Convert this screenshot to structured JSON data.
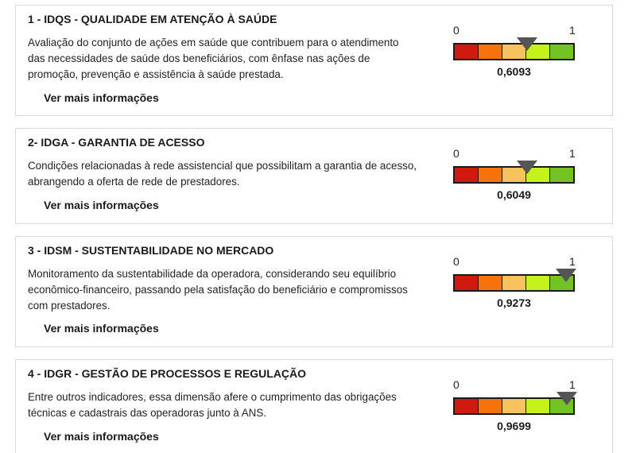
{
  "indicators": [
    {
      "title": "1 - IDQS - QUALIDADE EM ATENÇÃO À SAÚDE",
      "description": "Avaliação do conjunto de ações em saúde que contribuem para o atendimento das necessidades de saúde dos beneficiários, com ênfase nas ações de promoção, prevenção e assistência à saúde prestada.",
      "more_label": "Ver mais informações",
      "scale_min": "0",
      "scale_max": "1",
      "value_text": "0,6093",
      "value": 0.6093
    },
    {
      "title": "2- IDGA - GARANTIA DE ACESSO",
      "description": "Condições relacionadas à rede assistencial que possibilitam a garantia de acesso, abrangendo a oferta de rede de prestadores.",
      "more_label": "Ver mais informações",
      "scale_min": "0",
      "scale_max": "1",
      "value_text": "0,6049",
      "value": 0.6049
    },
    {
      "title": "3 - IDSM - SUSTENTABILIDADE NO MERCADO",
      "description": "Monitoramento da sustentabilidade da operadora, considerando seu equilíbrio econômico-financeiro, passando pela satisfação do beneficiário e compromissos com prestadores.",
      "more_label": "Ver mais informações",
      "scale_min": "0",
      "scale_max": "1",
      "value_text": "0,9273",
      "value": 0.9273
    },
    {
      "title": "4 - IDGR - GESTÃO DE PROCESSOS E REGULAÇÃO",
      "description": "Entre outros indicadores, essa dimensão afere o cumprimento das obrigações técnicas e cadastrais das operadoras junto à ANS.",
      "more_label": "Ver mais informações",
      "scale_min": "0",
      "scale_max": "1",
      "value_text": "0,9699",
      "value": 0.9699
    }
  ],
  "gauge_colors": [
    "#d11a0f",
    "#f5730d",
    "#f8c25e",
    "#c6f21b",
    "#72c323"
  ],
  "marker_color": "#555555"
}
